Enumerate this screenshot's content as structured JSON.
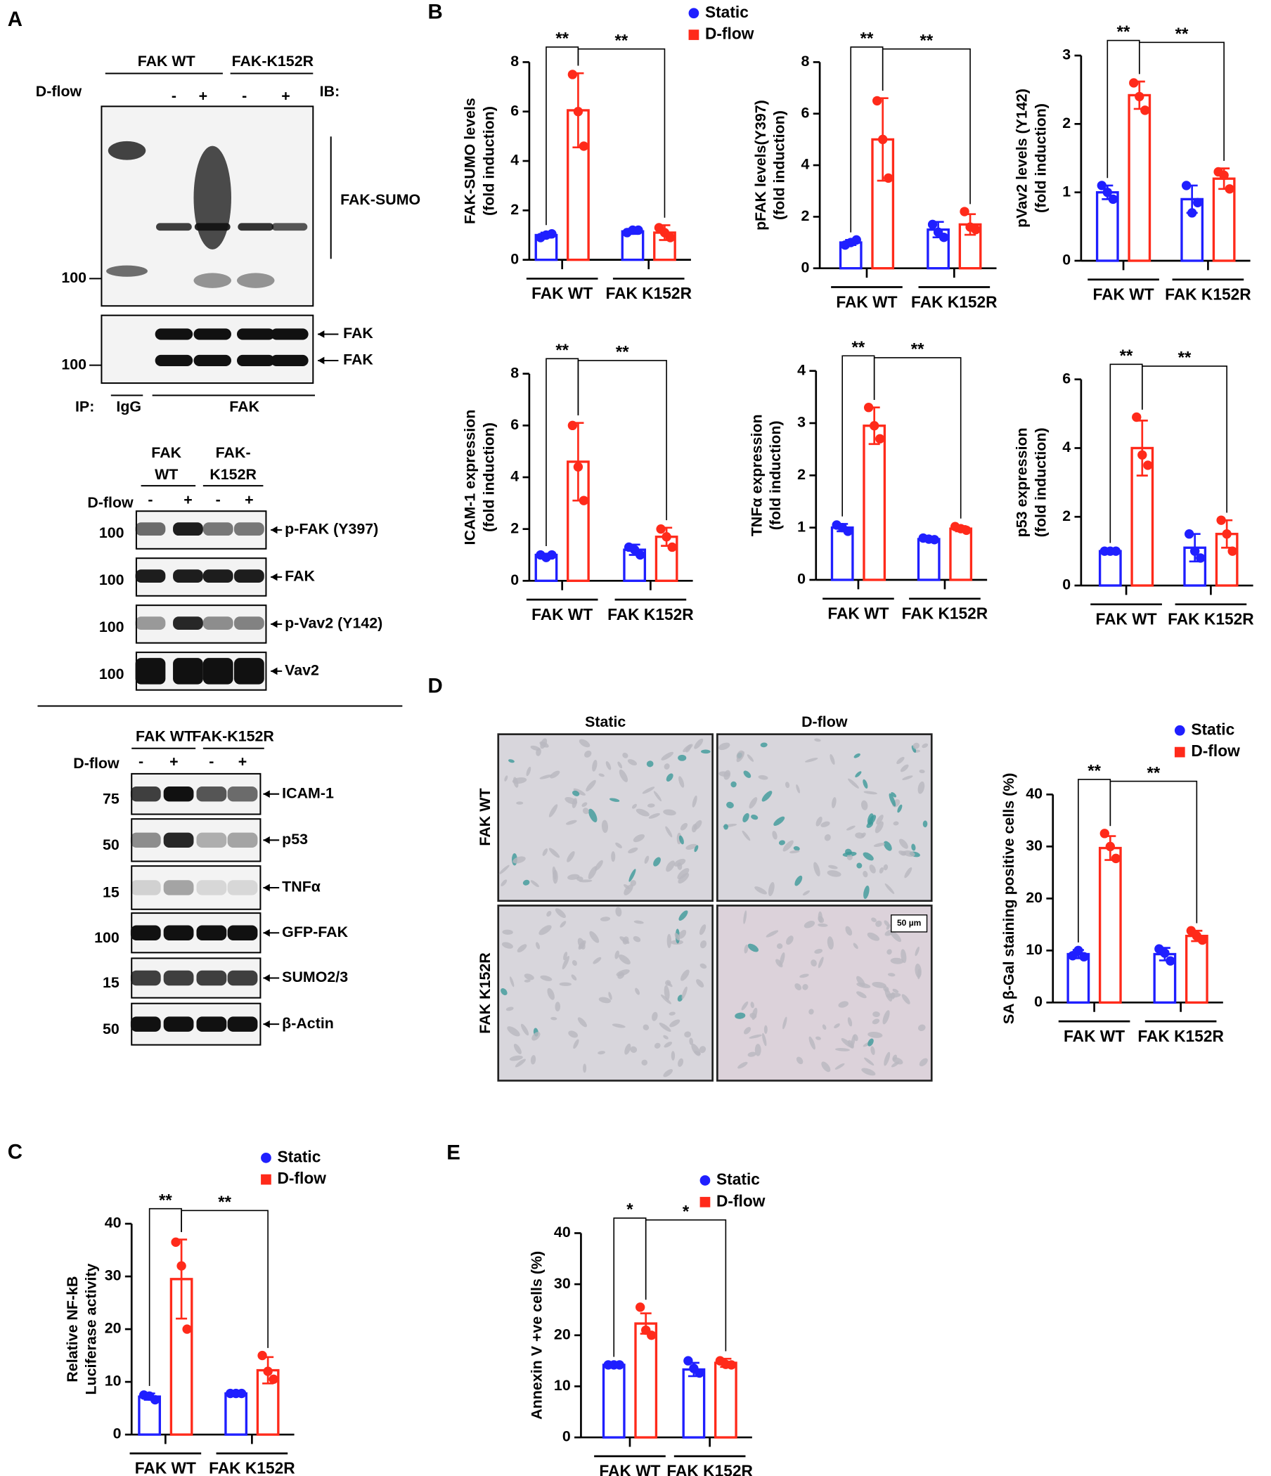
{
  "panel_labels": [
    "A",
    "B",
    "C",
    "D",
    "E"
  ],
  "blot_a": {
    "groups": [
      "FAK WT",
      "FAK-K152R"
    ],
    "row_label": "D-flow",
    "signs": [
      "-",
      "+",
      "-",
      "+"
    ],
    "ib": "IB:",
    "smear_label": "FAK-SUMO",
    "band_labels": [
      "FAK",
      "FAK"
    ],
    "mw": [
      "100",
      "100"
    ],
    "ip": "IP:",
    "ip_groups": [
      "IgG",
      "FAK"
    ]
  },
  "blot_b": {
    "groups": [
      [
        "FAK",
        "WT"
      ],
      [
        "FAK-",
        "K152R"
      ]
    ],
    "row_label": "D-flow",
    "signs": [
      "-",
      "+",
      "-",
      "+"
    ],
    "rows": [
      {
        "mw": "100",
        "label": "p-FAK (Y397)"
      },
      {
        "mw": "100",
        "label": "FAK"
      },
      {
        "mw": "100",
        "label": "p-Vav2 (Y142)"
      },
      {
        "mw": "100",
        "label": "Vav2"
      }
    ]
  },
  "blot_c": {
    "groups": [
      "FAK WT",
      "FAK-K152R"
    ],
    "row_label": "D-flow",
    "signs": [
      "-",
      "+",
      "-",
      "+"
    ],
    "rows": [
      {
        "mw": "75",
        "label": "ICAM-1"
      },
      {
        "mw": "50",
        "label": "p53"
      },
      {
        "mw": "15",
        "label": "TNFα"
      },
      {
        "mw": "100",
        "label": "GFP-FAK"
      },
      {
        "mw": "15",
        "label": "SUMO2/3"
      },
      {
        "mw": "50",
        "label": "β-Actin"
      }
    ]
  },
  "micrographs": {
    "columns": [
      "Static",
      "D-flow"
    ],
    "rows": [
      "FAK WT",
      "FAK K152R"
    ],
    "scale_bar": "50 µm"
  },
  "chart_data": [
    {
      "type": "bar",
      "ylabel": [
        "FAK-SUMO levels",
        "(fold induction)"
      ],
      "categories": [
        "FAK WT",
        "FAK K152R"
      ],
      "ylim": [
        0,
        8
      ],
      "yticks": [
        0,
        2,
        4,
        6,
        8
      ],
      "significance": [
        "**",
        "**"
      ],
      "series": [
        {
          "name": "Static",
          "color": "#1f1fff",
          "values": [
            1.0,
            1.15
          ],
          "errors": [
            0.1,
            0.1
          ],
          "points": [
            [
              0.9,
              1.0,
              1.05
            ],
            [
              1.1,
              1.2,
              1.2
            ]
          ]
        },
        {
          "name": "D-flow",
          "color": "#ff2a1a",
          "values": [
            6.05,
            1.1
          ],
          "errors": [
            1.5,
            0.3
          ],
          "points": [
            [
              7.5,
              6.0,
              4.6
            ],
            [
              1.3,
              1.1,
              0.9
            ]
          ]
        }
      ]
    },
    {
      "type": "bar",
      "ylabel": [
        "pFAK levels(Y397)",
        "(fold induction)"
      ],
      "categories": [
        "FAK WT",
        "FAK K152R"
      ],
      "ylim": [
        0,
        8
      ],
      "yticks": [
        0,
        2,
        4,
        6,
        8
      ],
      "significance": [
        "**",
        "**"
      ],
      "series": [
        {
          "color": "#1f1fff",
          "values": [
            1.0,
            1.5
          ],
          "errors": [
            0.1,
            0.3
          ],
          "points": [
            [
              0.9,
              1.0,
              1.1
            ],
            [
              1.7,
              1.4,
              1.2
            ]
          ]
        },
        {
          "color": "#ff2a1a",
          "values": [
            5.0,
            1.7
          ],
          "errors": [
            1.6,
            0.4
          ],
          "points": [
            [
              6.5,
              5.0,
              3.5
            ],
            [
              2.2,
              1.6,
              1.5
            ]
          ]
        }
      ]
    },
    {
      "type": "bar",
      "ylabel": [
        "pVav2 levels (Y142)",
        "(fold induction)"
      ],
      "categories": [
        "FAK WT",
        "FAK K152R"
      ],
      "ylim": [
        0,
        3
      ],
      "yticks": [
        0,
        1,
        2,
        3
      ],
      "significance": [
        "**",
        "**"
      ],
      "series": [
        {
          "color": "#1f1fff",
          "values": [
            1.0,
            0.9
          ],
          "errors": [
            0.1,
            0.2
          ],
          "points": [
            [
              1.1,
              1.0,
              0.9
            ],
            [
              1.1,
              0.7,
              0.85
            ]
          ]
        },
        {
          "color": "#ff2a1a",
          "values": [
            2.42,
            1.2
          ],
          "errors": [
            0.2,
            0.15
          ],
          "points": [
            [
              2.6,
              2.4,
              2.2
            ],
            [
              1.3,
              1.25,
              1.05
            ]
          ]
        }
      ]
    },
    {
      "type": "bar",
      "ylabel": [
        "ICAM-1 expression",
        "(fold induction)"
      ],
      "categories": [
        "FAK WT",
        "FAK K152R"
      ],
      "ylim": [
        0,
        8
      ],
      "yticks": [
        0,
        2,
        4,
        6,
        8
      ],
      "significance": [
        "**",
        "**"
      ],
      "series": [
        {
          "color": "#1f1fff",
          "values": [
            1.0,
            1.2
          ],
          "errors": [
            0.05,
            0.2
          ],
          "points": [
            [
              1.0,
              0.9,
              1.0
            ],
            [
              1.3,
              1.2,
              1.0
            ]
          ]
        },
        {
          "color": "#ff2a1a",
          "values": [
            4.6,
            1.7
          ],
          "errors": [
            1.5,
            0.35
          ],
          "points": [
            [
              6.0,
              4.4,
              3.1
            ],
            [
              2.0,
              1.7,
              1.3
            ]
          ]
        }
      ]
    },
    {
      "type": "bar",
      "ylabel": [
        "TNFα expression",
        "(fold induction)"
      ],
      "categories": [
        "FAK WT",
        "FAK K152R"
      ],
      "ylim": [
        0,
        4
      ],
      "yticks": [
        0,
        1,
        2,
        3,
        4
      ],
      "significance": [
        "**",
        "**"
      ],
      "series": [
        {
          "color": "#1f1fff",
          "values": [
            1.0,
            0.78
          ],
          "errors": [
            0.07,
            0.03
          ],
          "points": [
            [
              1.05,
              1.0,
              0.93
            ],
            [
              0.8,
              0.78,
              0.77
            ]
          ]
        },
        {
          "color": "#ff2a1a",
          "values": [
            2.95,
            0.98
          ],
          "errors": [
            0.35,
            0.05
          ],
          "points": [
            [
              3.3,
              2.95,
              2.7
            ],
            [
              1.02,
              0.98,
              0.95
            ]
          ]
        }
      ]
    },
    {
      "type": "bar",
      "ylabel": [
        "p53 expression",
        "(fold induction)"
      ],
      "categories": [
        "FAK WT",
        "FAK K152R"
      ],
      "ylim": [
        0,
        6
      ],
      "yticks": [
        0,
        2,
        4,
        6
      ],
      "significance": [
        "**",
        "**"
      ],
      "series": [
        {
          "color": "#1f1fff",
          "values": [
            1.0,
            1.1
          ],
          "errors": [
            0.02,
            0.4
          ],
          "points": [
            [
              1.0,
              1.0,
              1.0
            ],
            [
              1.5,
              1.0,
              0.8
            ]
          ]
        },
        {
          "color": "#ff2a1a",
          "values": [
            4.0,
            1.5
          ],
          "errors": [
            0.8,
            0.4
          ],
          "points": [
            [
              4.9,
              3.8,
              3.5
            ],
            [
              1.9,
              1.5,
              1.0
            ]
          ]
        }
      ]
    },
    {
      "type": "bar",
      "ylabel": [
        "SA β-Gal staining positive cells (%)"
      ],
      "categories": [
        "FAK WT",
        "FAK K152R"
      ],
      "ylim": [
        0,
        40
      ],
      "yticks": [
        0,
        10,
        20,
        30,
        40
      ],
      "significance": [
        "**",
        "**"
      ],
      "series": [
        {
          "name": "Static",
          "color": "#1f1fff",
          "values": [
            9.3,
            9.3
          ],
          "errors": [
            0.8,
            1.2
          ],
          "points": [
            [
              9.0,
              10.0,
              8.8
            ],
            [
              10.3,
              9.5,
              8.0
            ]
          ]
        },
        {
          "name": "D-flow",
          "color": "#ff2a1a",
          "values": [
            29.7,
            12.8
          ],
          "errors": [
            2.3,
            1.0
          ],
          "points": [
            [
              32.5,
              30.0,
              27.7
            ],
            [
              13.8,
              12.8,
              12.0
            ]
          ]
        }
      ]
    },
    {
      "type": "bar",
      "ylabel": [
        "Relative NF-kB",
        "Luciferase activity"
      ],
      "categories": [
        "FAK WT",
        "FAK K152R"
      ],
      "ylim": [
        0,
        40
      ],
      "yticks": [
        0,
        10,
        20,
        30,
        40
      ],
      "significance": [
        "**",
        "**"
      ],
      "series": [
        {
          "name": "Static",
          "color": "#1f1fff",
          "values": [
            7.2,
            7.8
          ],
          "errors": [
            0.6,
            0.1
          ],
          "points": [
            [
              7.5,
              7.3,
              6.6
            ],
            [
              7.8,
              7.8,
              7.8
            ]
          ]
        },
        {
          "name": "D-flow",
          "color": "#ff2a1a",
          "values": [
            29.5,
            12.2
          ],
          "errors": [
            7.5,
            2.5
          ],
          "points": [
            [
              36.5,
              32.0,
              20.0
            ],
            [
              15.0,
              12.0,
              10.5
            ]
          ]
        }
      ]
    },
    {
      "type": "bar",
      "ylabel": [
        "Annexin V +ve cells (%)"
      ],
      "categories": [
        "FAK WT",
        "FAK K152R"
      ],
      "ylim": [
        0,
        40
      ],
      "yticks": [
        0,
        10,
        20,
        30,
        40
      ],
      "significance": [
        "*",
        "*"
      ],
      "series": [
        {
          "name": "Static",
          "color": "#1f1fff",
          "values": [
            14.2,
            13.3
          ],
          "errors": [
            0.1,
            1.3
          ],
          "points": [
            [
              14.2,
              14.2,
              14.2
            ],
            [
              15.0,
              13.5,
              12.6
            ]
          ]
        },
        {
          "name": "D-flow",
          "color": "#ff2a1a",
          "values": [
            22.3,
            14.6
          ],
          "errors": [
            2.0,
            0.8
          ],
          "points": [
            [
              25.5,
              21.0,
              20.0
            ],
            [
              15.0,
              14.3,
              14.2
            ]
          ]
        }
      ]
    }
  ]
}
